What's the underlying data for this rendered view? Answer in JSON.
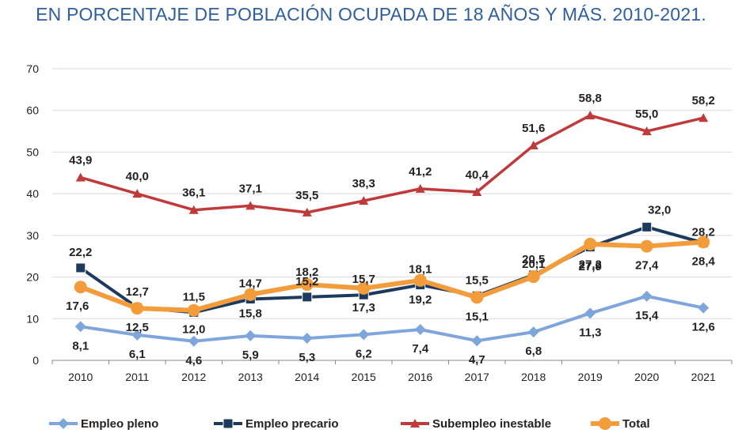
{
  "chart_data": {
    "type": "line",
    "title": "EN PORCENTAJE DE POBLACIÓN OCUPADA DE 18 AÑOS Y MÁS. 2010-2021.",
    "xlabel": "",
    "ylabel": "",
    "categories": [
      "2010",
      "2011",
      "2012",
      "2013",
      "2014",
      "2015",
      "2016",
      "2017",
      "2018",
      "2019",
      "2020",
      "2021"
    ],
    "ylim": [
      0,
      70
    ],
    "yticks": [
      "0",
      "10",
      "20",
      "30",
      "40",
      "50",
      "60",
      "70"
    ],
    "grid": true,
    "legend_position": "bottom",
    "series": [
      {
        "name": "Empleo pleno",
        "color": "#7ea6dc",
        "marker": "diamond",
        "values": [
          8.1,
          6.1,
          4.6,
          5.9,
          5.3,
          6.2,
          7.4,
          4.7,
          6.8,
          11.3,
          15.4,
          12.6
        ],
        "labels": [
          "8,1",
          "6,1",
          "4,6",
          "5,9",
          "5,3",
          "6,2",
          "7,4",
          "4,7",
          "6,8",
          "11,3",
          "15,4",
          "12,6"
        ]
      },
      {
        "name": "Empleo precario",
        "color": "#1c3a5e",
        "marker": "square",
        "values": [
          22.2,
          12.7,
          11.5,
          14.7,
          15.2,
          15.7,
          18.1,
          15.5,
          20.5,
          27.2,
          32.0,
          28.2
        ],
        "labels": [
          "22,2",
          "12,7",
          "11,5",
          "14,7",
          "15,2",
          "15,7",
          "18,1",
          "15,5",
          "20,5",
          "27,2",
          "32,0",
          "28,2"
        ]
      },
      {
        "name": "Subempleo inestable",
        "color": "#c0393b",
        "marker": "triangle",
        "values": [
          43.9,
          40.0,
          36.1,
          37.1,
          35.5,
          38.3,
          41.2,
          40.4,
          51.6,
          58.8,
          55.0,
          58.2
        ],
        "labels": [
          "43,9",
          "40,0",
          "36,1",
          "37,1",
          "35,5",
          "38,3",
          "41,2",
          "40,4",
          "51,6",
          "58,8",
          "55,0",
          "58,2"
        ]
      },
      {
        "name": "Total",
        "color": "#f39c3c",
        "marker": "circle",
        "values": [
          17.6,
          12.5,
          12.0,
          15.8,
          18.2,
          17.3,
          19.2,
          15.1,
          20.1,
          27.9,
          27.4,
          28.4
        ],
        "labels": [
          "17,6",
          "12,5",
          "12,0",
          "15,8",
          "18,2",
          "17,3",
          "19,2",
          "15,1",
          "20,1",
          "27,9",
          "27,4",
          "28,4"
        ]
      }
    ]
  }
}
